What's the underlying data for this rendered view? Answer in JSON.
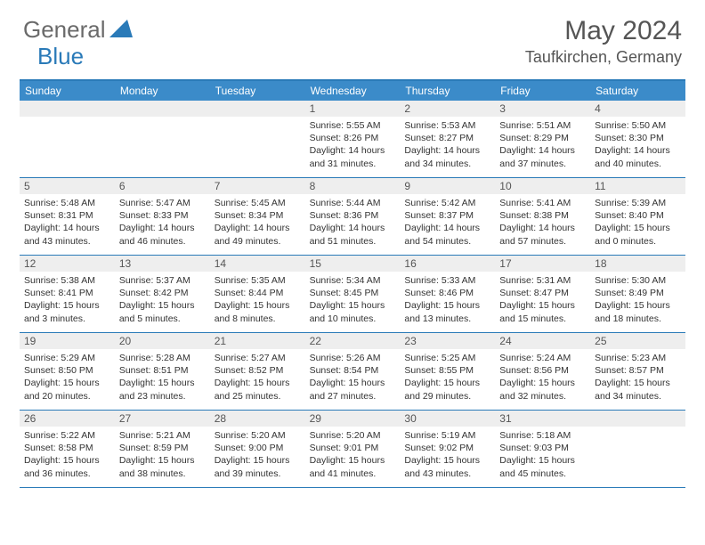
{
  "brand": {
    "part1": "General",
    "part2": "Blue"
  },
  "title": "May 2024",
  "location": "Taufkirchen, Germany",
  "colors": {
    "header_bg": "#3b8bc9",
    "border": "#2a7ab8",
    "daynum_bg": "#eeeeee",
    "text": "#333333",
    "title_text": "#555555"
  },
  "day_names": [
    "Sunday",
    "Monday",
    "Tuesday",
    "Wednesday",
    "Thursday",
    "Friday",
    "Saturday"
  ],
  "weeks": [
    [
      {
        "n": "",
        "sr": "",
        "ss": "",
        "dl": ""
      },
      {
        "n": "",
        "sr": "",
        "ss": "",
        "dl": ""
      },
      {
        "n": "",
        "sr": "",
        "ss": "",
        "dl": ""
      },
      {
        "n": "1",
        "sr": "Sunrise: 5:55 AM",
        "ss": "Sunset: 8:26 PM",
        "dl": "Daylight: 14 hours and 31 minutes."
      },
      {
        "n": "2",
        "sr": "Sunrise: 5:53 AM",
        "ss": "Sunset: 8:27 PM",
        "dl": "Daylight: 14 hours and 34 minutes."
      },
      {
        "n": "3",
        "sr": "Sunrise: 5:51 AM",
        "ss": "Sunset: 8:29 PM",
        "dl": "Daylight: 14 hours and 37 minutes."
      },
      {
        "n": "4",
        "sr": "Sunrise: 5:50 AM",
        "ss": "Sunset: 8:30 PM",
        "dl": "Daylight: 14 hours and 40 minutes."
      }
    ],
    [
      {
        "n": "5",
        "sr": "Sunrise: 5:48 AM",
        "ss": "Sunset: 8:31 PM",
        "dl": "Daylight: 14 hours and 43 minutes."
      },
      {
        "n": "6",
        "sr": "Sunrise: 5:47 AM",
        "ss": "Sunset: 8:33 PM",
        "dl": "Daylight: 14 hours and 46 minutes."
      },
      {
        "n": "7",
        "sr": "Sunrise: 5:45 AM",
        "ss": "Sunset: 8:34 PM",
        "dl": "Daylight: 14 hours and 49 minutes."
      },
      {
        "n": "8",
        "sr": "Sunrise: 5:44 AM",
        "ss": "Sunset: 8:36 PM",
        "dl": "Daylight: 14 hours and 51 minutes."
      },
      {
        "n": "9",
        "sr": "Sunrise: 5:42 AM",
        "ss": "Sunset: 8:37 PM",
        "dl": "Daylight: 14 hours and 54 minutes."
      },
      {
        "n": "10",
        "sr": "Sunrise: 5:41 AM",
        "ss": "Sunset: 8:38 PM",
        "dl": "Daylight: 14 hours and 57 minutes."
      },
      {
        "n": "11",
        "sr": "Sunrise: 5:39 AM",
        "ss": "Sunset: 8:40 PM",
        "dl": "Daylight: 15 hours and 0 minutes."
      }
    ],
    [
      {
        "n": "12",
        "sr": "Sunrise: 5:38 AM",
        "ss": "Sunset: 8:41 PM",
        "dl": "Daylight: 15 hours and 3 minutes."
      },
      {
        "n": "13",
        "sr": "Sunrise: 5:37 AM",
        "ss": "Sunset: 8:42 PM",
        "dl": "Daylight: 15 hours and 5 minutes."
      },
      {
        "n": "14",
        "sr": "Sunrise: 5:35 AM",
        "ss": "Sunset: 8:44 PM",
        "dl": "Daylight: 15 hours and 8 minutes."
      },
      {
        "n": "15",
        "sr": "Sunrise: 5:34 AM",
        "ss": "Sunset: 8:45 PM",
        "dl": "Daylight: 15 hours and 10 minutes."
      },
      {
        "n": "16",
        "sr": "Sunrise: 5:33 AM",
        "ss": "Sunset: 8:46 PM",
        "dl": "Daylight: 15 hours and 13 minutes."
      },
      {
        "n": "17",
        "sr": "Sunrise: 5:31 AM",
        "ss": "Sunset: 8:47 PM",
        "dl": "Daylight: 15 hours and 15 minutes."
      },
      {
        "n": "18",
        "sr": "Sunrise: 5:30 AM",
        "ss": "Sunset: 8:49 PM",
        "dl": "Daylight: 15 hours and 18 minutes."
      }
    ],
    [
      {
        "n": "19",
        "sr": "Sunrise: 5:29 AM",
        "ss": "Sunset: 8:50 PM",
        "dl": "Daylight: 15 hours and 20 minutes."
      },
      {
        "n": "20",
        "sr": "Sunrise: 5:28 AM",
        "ss": "Sunset: 8:51 PM",
        "dl": "Daylight: 15 hours and 23 minutes."
      },
      {
        "n": "21",
        "sr": "Sunrise: 5:27 AM",
        "ss": "Sunset: 8:52 PM",
        "dl": "Daylight: 15 hours and 25 minutes."
      },
      {
        "n": "22",
        "sr": "Sunrise: 5:26 AM",
        "ss": "Sunset: 8:54 PM",
        "dl": "Daylight: 15 hours and 27 minutes."
      },
      {
        "n": "23",
        "sr": "Sunrise: 5:25 AM",
        "ss": "Sunset: 8:55 PM",
        "dl": "Daylight: 15 hours and 29 minutes."
      },
      {
        "n": "24",
        "sr": "Sunrise: 5:24 AM",
        "ss": "Sunset: 8:56 PM",
        "dl": "Daylight: 15 hours and 32 minutes."
      },
      {
        "n": "25",
        "sr": "Sunrise: 5:23 AM",
        "ss": "Sunset: 8:57 PM",
        "dl": "Daylight: 15 hours and 34 minutes."
      }
    ],
    [
      {
        "n": "26",
        "sr": "Sunrise: 5:22 AM",
        "ss": "Sunset: 8:58 PM",
        "dl": "Daylight: 15 hours and 36 minutes."
      },
      {
        "n": "27",
        "sr": "Sunrise: 5:21 AM",
        "ss": "Sunset: 8:59 PM",
        "dl": "Daylight: 15 hours and 38 minutes."
      },
      {
        "n": "28",
        "sr": "Sunrise: 5:20 AM",
        "ss": "Sunset: 9:00 PM",
        "dl": "Daylight: 15 hours and 39 minutes."
      },
      {
        "n": "29",
        "sr": "Sunrise: 5:20 AM",
        "ss": "Sunset: 9:01 PM",
        "dl": "Daylight: 15 hours and 41 minutes."
      },
      {
        "n": "30",
        "sr": "Sunrise: 5:19 AM",
        "ss": "Sunset: 9:02 PM",
        "dl": "Daylight: 15 hours and 43 minutes."
      },
      {
        "n": "31",
        "sr": "Sunrise: 5:18 AM",
        "ss": "Sunset: 9:03 PM",
        "dl": "Daylight: 15 hours and 45 minutes."
      },
      {
        "n": "",
        "sr": "",
        "ss": "",
        "dl": ""
      }
    ]
  ]
}
